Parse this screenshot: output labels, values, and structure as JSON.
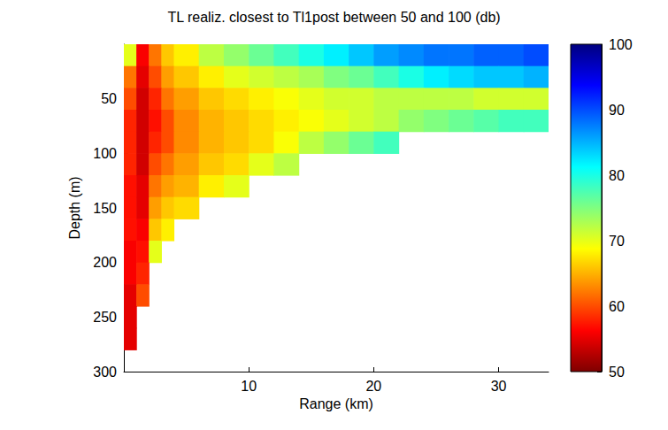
{
  "chart_data": {
    "type": "heatmap",
    "title": "TL realiz. closest to Tl1post between 50 and 100 (db)",
    "x_label": "Range (km)",
    "y_label": "Depth (m)",
    "xlim": [
      0,
      34
    ],
    "xticks": [
      10,
      20,
      30
    ],
    "ylim": [
      0,
      300
    ],
    "yticks": [
      50,
      100,
      150,
      200,
      250,
      300
    ],
    "cells": {
      "x_edges": [
        0,
        1,
        2,
        3,
        4,
        6,
        8,
        10,
        12,
        14,
        16,
        18,
        20,
        22,
        24,
        26,
        28,
        30,
        32,
        34
      ],
      "y_edges": [
        0,
        20,
        40,
        60,
        80,
        100,
        120,
        140,
        160,
        180,
        200,
        220,
        240,
        260,
        280,
        300
      ],
      "values": [
        [
          70,
          56,
          62,
          66,
          68,
          72,
          74,
          76,
          78,
          80,
          82,
          84,
          86,
          87,
          88,
          88,
          89,
          89,
          90
        ],
        [
          62,
          55,
          60,
          64,
          66,
          68,
          70,
          71,
          72,
          73,
          75,
          76,
          78,
          80,
          82,
          83,
          84,
          84,
          85
        ],
        [
          60,
          54,
          58,
          62,
          64,
          66,
          67,
          68,
          69,
          70,
          71,
          71,
          72,
          72,
          72,
          72,
          71,
          71,
          71
        ],
        [
          58,
          54,
          57,
          60,
          63,
          65,
          66,
          67,
          68,
          69,
          70,
          71,
          72,
          74,
          75,
          76,
          77,
          78,
          78
        ],
        [
          58,
          54,
          58,
          60,
          63,
          65,
          66,
          67,
          69,
          72,
          74,
          76,
          78,
          null,
          null,
          null,
          null,
          null,
          null
        ],
        [
          58,
          54,
          60,
          62,
          64,
          66,
          67,
          70,
          72,
          null,
          null,
          null,
          null,
          null,
          null,
          null,
          null,
          null,
          null
        ],
        [
          57,
          55,
          62,
          64,
          65,
          68,
          70,
          null,
          null,
          null,
          null,
          null,
          null,
          null,
          null,
          null,
          null,
          null,
          null
        ],
        [
          57,
          55,
          64,
          66,
          67,
          null,
          null,
          null,
          null,
          null,
          null,
          null,
          null,
          null,
          null,
          null,
          null,
          null,
          null
        ],
        [
          57,
          56,
          66,
          68,
          null,
          null,
          null,
          null,
          null,
          null,
          null,
          null,
          null,
          null,
          null,
          null,
          null,
          null,
          null
        ],
        [
          56,
          57,
          70,
          null,
          null,
          null,
          null,
          null,
          null,
          null,
          null,
          null,
          null,
          null,
          null,
          null,
          null,
          null,
          null
        ],
        [
          56,
          58,
          null,
          null,
          null,
          null,
          null,
          null,
          null,
          null,
          null,
          null,
          null,
          null,
          null,
          null,
          null,
          null,
          null
        ],
        [
          55,
          60,
          null,
          null,
          null,
          null,
          null,
          null,
          null,
          null,
          null,
          null,
          null,
          null,
          null,
          null,
          null,
          null,
          null
        ],
        [
          55,
          null,
          null,
          null,
          null,
          null,
          null,
          null,
          null,
          null,
          null,
          null,
          null,
          null,
          null,
          null,
          null,
          null,
          null
        ],
        [
          55,
          null,
          null,
          null,
          null,
          null,
          null,
          null,
          null,
          null,
          null,
          null,
          null,
          null,
          null,
          null,
          null,
          null,
          null
        ],
        [
          null,
          null,
          null,
          null,
          null,
          null,
          null,
          null,
          null,
          null,
          null,
          null,
          null,
          null,
          null,
          null,
          null,
          null,
          null
        ]
      ]
    },
    "colorbar": {
      "range": [
        50,
        100
      ],
      "ticks": [
        50,
        60,
        70,
        80,
        90,
        100
      ]
    }
  }
}
